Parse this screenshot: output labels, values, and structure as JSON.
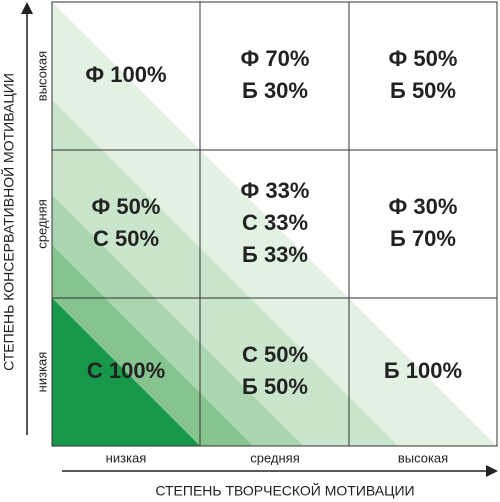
{
  "y_axis": {
    "title": "СТЕПЕНЬ КОНСЕРВАТИВНОЙ МОТИВАЦИИ",
    "labels": [
      "высокая",
      "средняя",
      "низкая"
    ]
  },
  "x_axis": {
    "title": "СТЕПЕНЬ ТВОРЧЕСКОЙ МОТИВАЦИИ",
    "labels": [
      "низкая",
      "средняя",
      "высокая"
    ]
  },
  "cells": [
    [
      [
        "Ф 100%"
      ],
      [
        "Ф 70%",
        "Б 30%"
      ],
      [
        "Ф 50%",
        "Б 50%"
      ]
    ],
    [
      [
        "Ф 50%",
        "С 50%"
      ],
      [
        "Ф 33%",
        "С 33%",
        "Б 33%"
      ],
      [
        "Ф 30%",
        "Б 70%"
      ]
    ],
    [
      [
        "С 100%"
      ],
      [
        "С 50%",
        "Б 50%"
      ],
      [
        "Б 100%"
      ]
    ]
  ]
}
